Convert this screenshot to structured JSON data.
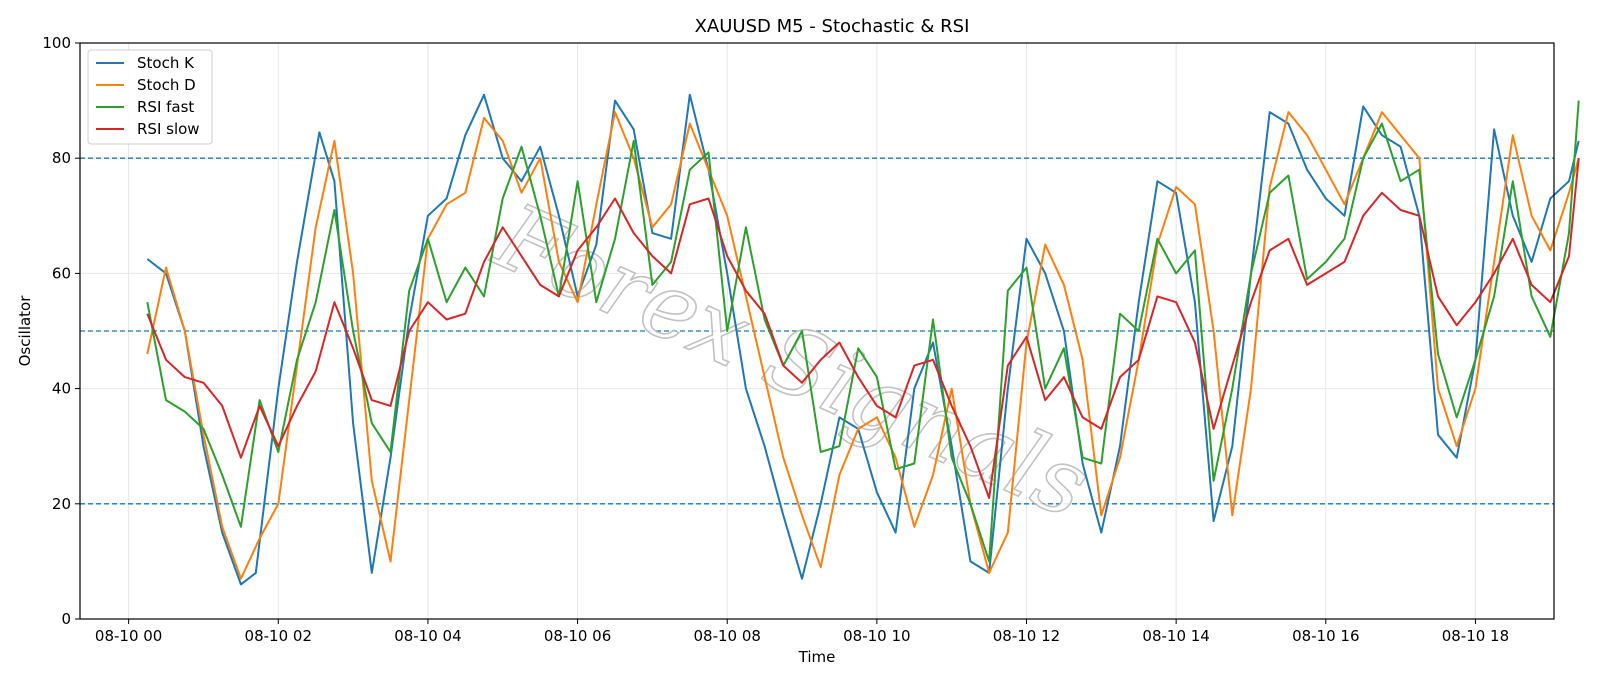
{
  "chart_data": {
    "type": "line",
    "title": "XAUUSD M5 - Stochastic & RSI",
    "xlabel": "Time",
    "ylabel": "Oscillator",
    "ylim": [
      0,
      100
    ],
    "yticks": [
      0,
      20,
      40,
      60,
      80,
      100
    ],
    "xlim_hours": [
      -0.65,
      19.05
    ],
    "xticks": [
      {
        "label": "08-10 00",
        "hour": 0
      },
      {
        "label": "08-10 02",
        "hour": 2
      },
      {
        "label": "08-10 04",
        "hour": 4
      },
      {
        "label": "08-10 06",
        "hour": 6
      },
      {
        "label": "08-10 08",
        "hour": 8
      },
      {
        "label": "08-10 10",
        "hour": 10
      },
      {
        "label": "08-10 12",
        "hour": 12
      },
      {
        "label": "08-10 14",
        "hour": 14
      },
      {
        "label": "08-10 16",
        "hour": 16
      },
      {
        "label": "08-10 18",
        "hour": 18
      }
    ],
    "reference_lines": [
      20,
      50,
      80
    ],
    "grid": true,
    "legend_position": "top-left",
    "watermark": "Forex Signals",
    "series": [
      {
        "name": "Stoch K",
        "color": "#1f77b4",
        "points": [
          [
            0.25,
            62.5
          ],
          [
            0.5,
            60
          ],
          [
            0.75,
            50
          ],
          [
            1,
            30
          ],
          [
            1.25,
            15
          ],
          [
            1.5,
            6
          ],
          [
            1.7,
            8
          ],
          [
            2,
            40
          ],
          [
            2.25,
            62
          ],
          [
            2.55,
            84.5
          ],
          [
            2.75,
            76
          ],
          [
            3,
            34
          ],
          [
            3.25,
            8
          ],
          [
            3.5,
            28
          ],
          [
            3.75,
            52
          ],
          [
            4,
            70
          ],
          [
            4.25,
            73
          ],
          [
            4.5,
            84
          ],
          [
            4.75,
            91
          ],
          [
            5,
            80
          ],
          [
            5.25,
            76
          ],
          [
            5.5,
            82
          ],
          [
            5.75,
            70
          ],
          [
            6,
            56
          ],
          [
            6.25,
            65
          ],
          [
            6.5,
            90
          ],
          [
            6.75,
            85
          ],
          [
            7,
            67
          ],
          [
            7.25,
            66
          ],
          [
            7.5,
            91
          ],
          [
            7.75,
            78
          ],
          [
            8,
            60
          ],
          [
            8.25,
            40
          ],
          [
            8.5,
            30
          ],
          [
            8.75,
            18
          ],
          [
            9,
            7
          ],
          [
            9.25,
            20
          ],
          [
            9.5,
            35
          ],
          [
            9.75,
            33
          ],
          [
            10,
            22
          ],
          [
            10.25,
            15
          ],
          [
            10.5,
            40
          ],
          [
            10.75,
            48
          ],
          [
            11,
            30
          ],
          [
            11.25,
            10
          ],
          [
            11.5,
            8
          ],
          [
            11.75,
            40
          ],
          [
            12,
            66
          ],
          [
            12.25,
            60
          ],
          [
            12.5,
            50
          ],
          [
            12.75,
            27
          ],
          [
            13,
            15
          ],
          [
            13.25,
            30
          ],
          [
            13.5,
            55
          ],
          [
            13.75,
            76
          ],
          [
            14,
            74
          ],
          [
            14.25,
            55
          ],
          [
            14.5,
            17
          ],
          [
            14.75,
            30
          ],
          [
            15,
            60
          ],
          [
            15.25,
            88
          ],
          [
            15.5,
            86
          ],
          [
            15.75,
            78
          ],
          [
            16,
            73
          ],
          [
            16.25,
            70
          ],
          [
            16.5,
            89
          ],
          [
            16.75,
            84
          ],
          [
            17,
            82
          ],
          [
            17.25,
            70
          ],
          [
            17.5,
            32
          ],
          [
            17.75,
            28
          ],
          [
            18,
            45
          ],
          [
            18.25,
            85
          ],
          [
            18.5,
            70
          ],
          [
            18.75,
            62
          ],
          [
            19,
            73
          ],
          [
            19.25,
            76
          ],
          [
            19.38,
            83
          ]
        ]
      },
      {
        "name": "Stoch D",
        "color": "#ff7f0e",
        "points": [
          [
            0.25,
            46
          ],
          [
            0.5,
            61
          ],
          [
            0.75,
            50
          ],
          [
            1,
            32
          ],
          [
            1.25,
            16
          ],
          [
            1.5,
            7
          ],
          [
            1.75,
            14
          ],
          [
            2,
            20
          ],
          [
            2.25,
            44
          ],
          [
            2.5,
            68
          ],
          [
            2.75,
            83
          ],
          [
            3,
            60
          ],
          [
            3.25,
            24
          ],
          [
            3.5,
            10
          ],
          [
            3.75,
            38
          ],
          [
            4,
            66
          ],
          [
            4.25,
            72
          ],
          [
            4.5,
            74
          ],
          [
            4.75,
            87
          ],
          [
            5,
            83
          ],
          [
            5.25,
            74
          ],
          [
            5.5,
            80
          ],
          [
            5.75,
            62
          ],
          [
            6,
            55
          ],
          [
            6.25,
            72
          ],
          [
            6.5,
            88
          ],
          [
            6.75,
            80
          ],
          [
            7,
            68
          ],
          [
            7.25,
            72
          ],
          [
            7.5,
            86
          ],
          [
            7.75,
            78
          ],
          [
            8,
            70
          ],
          [
            8.25,
            56
          ],
          [
            8.5,
            42
          ],
          [
            8.75,
            28
          ],
          [
            9,
            18
          ],
          [
            9.25,
            9
          ],
          [
            9.5,
            25
          ],
          [
            9.75,
            33
          ],
          [
            10,
            35
          ],
          [
            10.25,
            28
          ],
          [
            10.5,
            16
          ],
          [
            10.75,
            25
          ],
          [
            11,
            40
          ],
          [
            11.25,
            20
          ],
          [
            11.5,
            8
          ],
          [
            11.75,
            15
          ],
          [
            12,
            48
          ],
          [
            12.25,
            65
          ],
          [
            12.5,
            58
          ],
          [
            12.75,
            45
          ],
          [
            13,
            18
          ],
          [
            13.25,
            28
          ],
          [
            13.5,
            45
          ],
          [
            13.75,
            65
          ],
          [
            14,
            75
          ],
          [
            14.25,
            72
          ],
          [
            14.5,
            50
          ],
          [
            14.75,
            18
          ],
          [
            15,
            40
          ],
          [
            15.25,
            75
          ],
          [
            15.5,
            88
          ],
          [
            15.75,
            84
          ],
          [
            16,
            78
          ],
          [
            16.25,
            72
          ],
          [
            16.5,
            80
          ],
          [
            16.75,
            88
          ],
          [
            17,
            84
          ],
          [
            17.25,
            80
          ],
          [
            17.5,
            40
          ],
          [
            17.75,
            30
          ],
          [
            18,
            40
          ],
          [
            18.25,
            62
          ],
          [
            18.5,
            84
          ],
          [
            18.75,
            70
          ],
          [
            19,
            64
          ],
          [
            19.25,
            74
          ],
          [
            19.38,
            80
          ]
        ]
      },
      {
        "name": "RSI fast",
        "color": "#2ca02c",
        "points": [
          [
            0.25,
            55
          ],
          [
            0.5,
            38
          ],
          [
            0.75,
            36
          ],
          [
            1,
            33
          ],
          [
            1.25,
            25
          ],
          [
            1.5,
            16
          ],
          [
            1.75,
            38
          ],
          [
            2,
            29
          ],
          [
            2.25,
            45
          ],
          [
            2.5,
            55
          ],
          [
            2.75,
            71
          ],
          [
            3,
            50
          ],
          [
            3.25,
            34
          ],
          [
            3.5,
            29
          ],
          [
            3.75,
            57
          ],
          [
            4,
            66
          ],
          [
            4.25,
            55
          ],
          [
            4.5,
            61
          ],
          [
            4.75,
            56
          ],
          [
            5,
            73
          ],
          [
            5.25,
            82
          ],
          [
            5.5,
            70
          ],
          [
            5.75,
            56
          ],
          [
            6,
            76
          ],
          [
            6.25,
            55
          ],
          [
            6.5,
            66
          ],
          [
            6.75,
            83
          ],
          [
            7,
            58
          ],
          [
            7.25,
            62
          ],
          [
            7.5,
            78
          ],
          [
            7.75,
            81
          ],
          [
            8,
            50
          ],
          [
            8.25,
            68
          ],
          [
            8.5,
            52
          ],
          [
            8.75,
            44
          ],
          [
            9,
            50
          ],
          [
            9.25,
            29
          ],
          [
            9.5,
            30
          ],
          [
            9.75,
            47
          ],
          [
            10,
            42
          ],
          [
            10.25,
            26
          ],
          [
            10.5,
            27
          ],
          [
            10.75,
            52
          ],
          [
            11,
            28
          ],
          [
            11.25,
            20
          ],
          [
            11.5,
            10
          ],
          [
            11.75,
            57
          ],
          [
            12,
            61
          ],
          [
            12.25,
            40
          ],
          [
            12.5,
            47
          ],
          [
            12.75,
            28
          ],
          [
            13,
            27
          ],
          [
            13.25,
            53
          ],
          [
            13.5,
            50
          ],
          [
            13.75,
            66
          ],
          [
            14,
            60
          ],
          [
            14.25,
            64
          ],
          [
            14.5,
            24
          ],
          [
            14.75,
            40
          ],
          [
            15,
            60
          ],
          [
            15.25,
            74
          ],
          [
            15.5,
            77
          ],
          [
            15.75,
            59
          ],
          [
            16,
            62
          ],
          [
            16.25,
            66
          ],
          [
            16.5,
            80
          ],
          [
            16.75,
            86
          ],
          [
            17,
            76
          ],
          [
            17.25,
            78
          ],
          [
            17.5,
            46
          ],
          [
            17.75,
            35
          ],
          [
            18,
            45
          ],
          [
            18.25,
            56
          ],
          [
            18.5,
            76
          ],
          [
            18.75,
            56
          ],
          [
            19,
            49
          ],
          [
            19.25,
            67
          ],
          [
            19.38,
            90
          ]
        ]
      },
      {
        "name": "RSI slow",
        "color": "#d62728",
        "points": [
          [
            0.25,
            53
          ],
          [
            0.5,
            45
          ],
          [
            0.75,
            42
          ],
          [
            1,
            41
          ],
          [
            1.25,
            37
          ],
          [
            1.5,
            28
          ],
          [
            1.75,
            37
          ],
          [
            2,
            30
          ],
          [
            2.25,
            37
          ],
          [
            2.5,
            43
          ],
          [
            2.75,
            55
          ],
          [
            3,
            47
          ],
          [
            3.25,
            38
          ],
          [
            3.5,
            37
          ],
          [
            3.75,
            50
          ],
          [
            4,
            55
          ],
          [
            4.25,
            52
          ],
          [
            4.5,
            53
          ],
          [
            4.75,
            62
          ],
          [
            5,
            68
          ],
          [
            5.25,
            63
          ],
          [
            5.5,
            58
          ],
          [
            5.75,
            56
          ],
          [
            6,
            64
          ],
          [
            6.25,
            68
          ],
          [
            6.5,
            73
          ],
          [
            6.75,
            67
          ],
          [
            7,
            63
          ],
          [
            7.25,
            60
          ],
          [
            7.5,
            72
          ],
          [
            7.75,
            73
          ],
          [
            8,
            63
          ],
          [
            8.25,
            57
          ],
          [
            8.5,
            53
          ],
          [
            8.75,
            44
          ],
          [
            9,
            41
          ],
          [
            9.25,
            45
          ],
          [
            9.5,
            48
          ],
          [
            9.75,
            42
          ],
          [
            10,
            37
          ],
          [
            10.25,
            35
          ],
          [
            10.5,
            44
          ],
          [
            10.75,
            45
          ],
          [
            11,
            37
          ],
          [
            11.25,
            30
          ],
          [
            11.5,
            21
          ],
          [
            11.75,
            44
          ],
          [
            12,
            49
          ],
          [
            12.25,
            38
          ],
          [
            12.5,
            42
          ],
          [
            12.75,
            35
          ],
          [
            13,
            33
          ],
          [
            13.25,
            42
          ],
          [
            13.5,
            45
          ],
          [
            13.75,
            56
          ],
          [
            14,
            55
          ],
          [
            14.25,
            48
          ],
          [
            14.5,
            33
          ],
          [
            14.75,
            44
          ],
          [
            15,
            55
          ],
          [
            15.25,
            64
          ],
          [
            15.5,
            66
          ],
          [
            15.75,
            58
          ],
          [
            16,
            60
          ],
          [
            16.25,
            62
          ],
          [
            16.5,
            70
          ],
          [
            16.75,
            74
          ],
          [
            17,
            71
          ],
          [
            17.25,
            70
          ],
          [
            17.5,
            56
          ],
          [
            17.75,
            51
          ],
          [
            18,
            55
          ],
          [
            18.25,
            60
          ],
          [
            18.5,
            66
          ],
          [
            18.75,
            58
          ],
          [
            19,
            55
          ],
          [
            19.25,
            63
          ],
          [
            19.38,
            80
          ]
        ]
      }
    ]
  }
}
